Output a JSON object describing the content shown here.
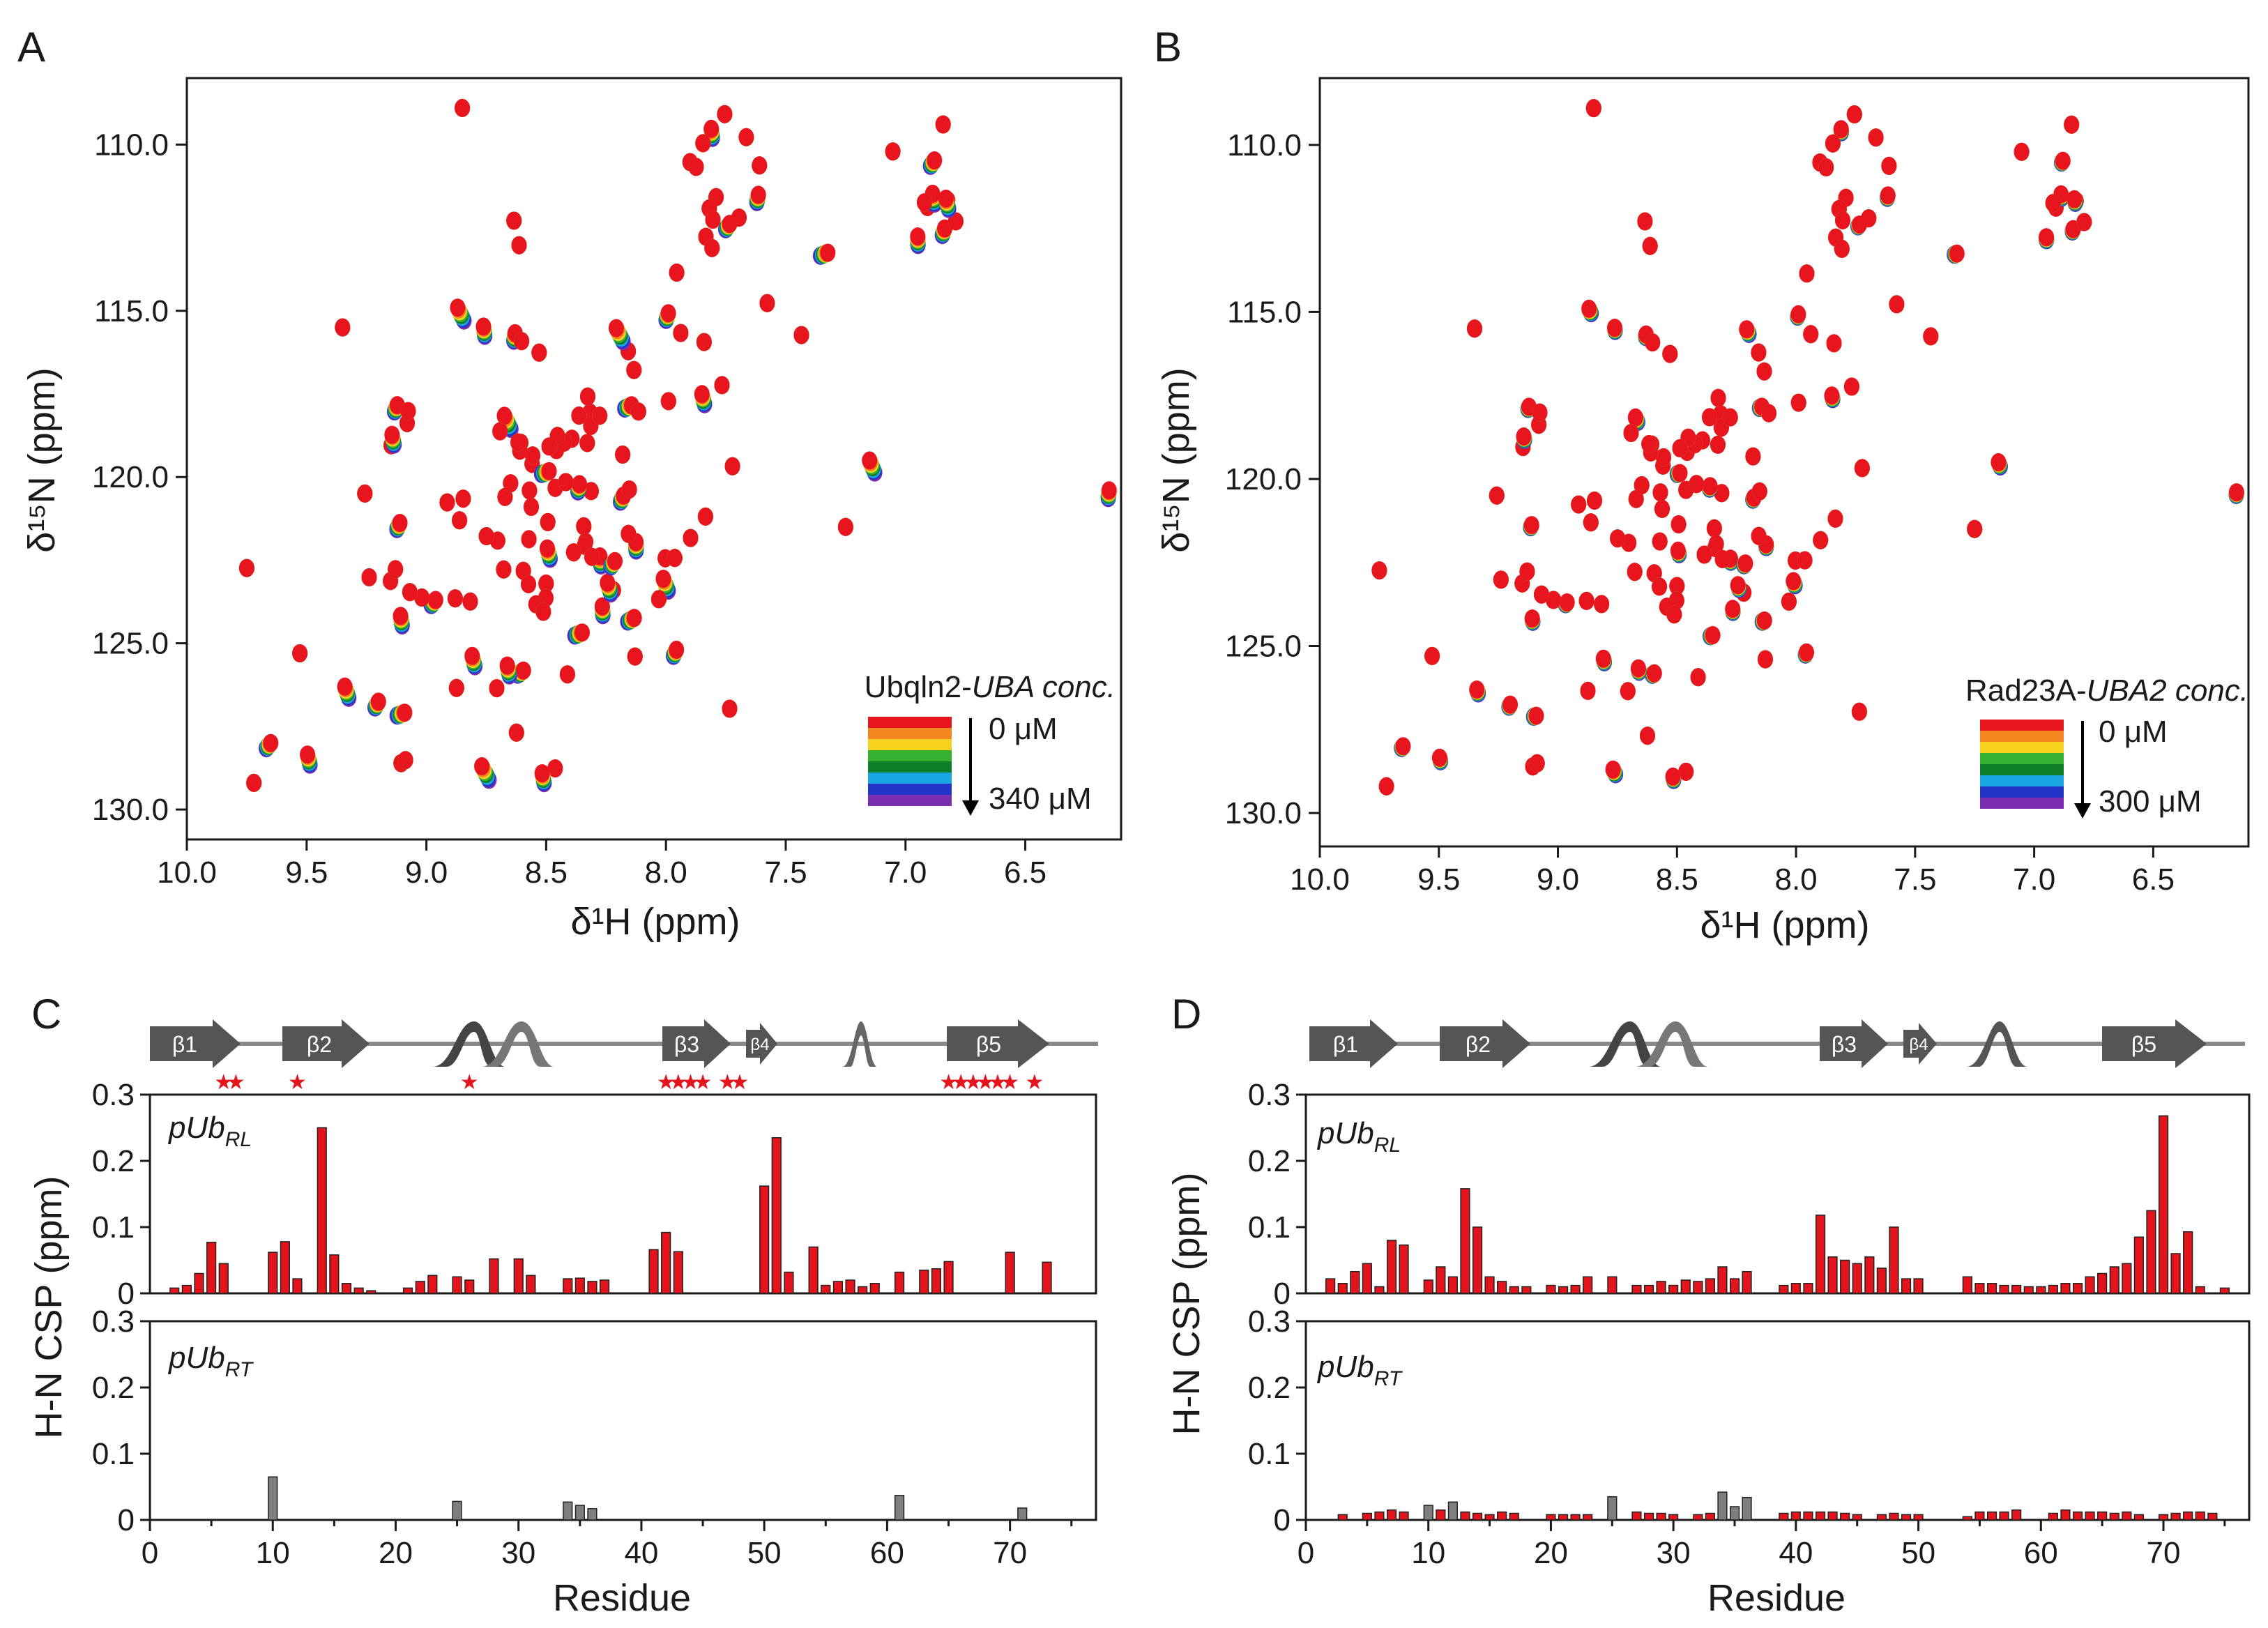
{
  "figure": {
    "panels": [
      "A",
      "B",
      "C",
      "D"
    ]
  },
  "hsqc_axes": {
    "xlabel": "δ¹H (ppm)",
    "ylabel": "δ¹⁵N (ppm)",
    "xticks": [
      "10.0",
      "9.5",
      "9.0",
      "8.5",
      "8.0",
      "7.5",
      "7.0",
      "6.5"
    ],
    "yticks": [
      "110.0",
      "115.0",
      "120.0",
      "125.0",
      "130.0"
    ]
  },
  "panel_A": {
    "legend_title_prefix": "Ubqln2-",
    "legend_title_italic": "UBA conc.",
    "legend_low": "0 μM",
    "legend_high": "340 μM"
  },
  "panel_B": {
    "legend_title_prefix": "Rad23A-",
    "legend_title_italic": "UBA2 conc.",
    "legend_low": "0 μM",
    "legend_high": "300 μM"
  },
  "titration_colors": [
    "#e8141e",
    "#f4861f",
    "#f6d21e",
    "#35b132",
    "#0e7d2a",
    "#1aa6e0",
    "#2335c8",
    "#7a2fb0"
  ],
  "csp_axes": {
    "ylabel": "H-N CSP (ppm)",
    "xlabel": "Residue",
    "xticks": [
      "0",
      "10",
      "20",
      "30",
      "40",
      "50",
      "60",
      "70"
    ],
    "yticks": [
      "0",
      "0.1",
      "0.2",
      "0.3"
    ],
    "label_RL_main": "pUb",
    "label_RL_sub": "RL",
    "label_RT_main": "pUb",
    "label_RT_sub": "RT"
  },
  "secondary_structure": {
    "strands": [
      "β1",
      "β2",
      "β3",
      "β4",
      "β5"
    ],
    "star": "★"
  },
  "chart_data": [
    {
      "type": "bar",
      "panel": "C",
      "title": "pUbRL",
      "xlabel": "Residue",
      "ylabel": "H-N CSP (ppm)",
      "xlim": [
        0,
        77
      ],
      "ylim": [
        0,
        0.3
      ],
      "x": [
        2,
        3,
        4,
        5,
        6,
        10,
        11,
        12,
        14,
        15,
        16,
        17,
        18,
        21,
        22,
        23,
        25,
        26,
        28,
        30,
        31,
        34,
        35,
        36,
        37,
        41,
        42,
        43,
        50,
        51,
        52,
        54,
        55,
        56,
        57,
        58,
        59,
        61,
        63,
        64,
        65,
        70,
        73
      ],
      "values": [
        0.008,
        0.012,
        0.03,
        0.077,
        0.045,
        0.062,
        0.078,
        0.022,
        0.25,
        0.058,
        0.015,
        0.008,
        0.004,
        0.008,
        0.018,
        0.027,
        0.025,
        0.02,
        0.052,
        0.052,
        0.027,
        0.022,
        0.023,
        0.018,
        0.02,
        0.066,
        0.092,
        0.063,
        0.162,
        0.235,
        0.032,
        0.07,
        0.012,
        0.018,
        0.02,
        0.01,
        0.015,
        0.032,
        0.035,
        0.037,
        0.048,
        0.062,
        0.047
      ],
      "color": "#e3141c",
      "starred_residues": [
        6,
        7,
        12,
        26,
        42,
        43,
        44,
        45,
        47,
        48,
        65,
        66,
        67,
        68,
        69,
        70,
        72
      ]
    },
    {
      "type": "bar",
      "panel": "C",
      "title": "pUbRT",
      "xlabel": "Residue",
      "ylabel": "H-N CSP (ppm)",
      "xlim": [
        0,
        77
      ],
      "ylim": [
        0,
        0.3
      ],
      "x": [
        10,
        25,
        34,
        35,
        36,
        61,
        71
      ],
      "values": [
        0.065,
        0.028,
        0.027,
        0.022,
        0.017,
        0.037,
        0.018
      ],
      "color": "#7f7f7f"
    },
    {
      "type": "bar",
      "panel": "D",
      "title": "pUbRL",
      "xlabel": "Residue",
      "ylabel": "H-N CSP (ppm)",
      "xlim": [
        0,
        77
      ],
      "ylim": [
        0,
        0.3
      ],
      "x": [
        2,
        3,
        4,
        5,
        6,
        7,
        8,
        10,
        11,
        12,
        13,
        14,
        15,
        16,
        17,
        18,
        20,
        21,
        22,
        23,
        25,
        27,
        28,
        29,
        30,
        31,
        32,
        33,
        34,
        35,
        36,
        39,
        40,
        41,
        42,
        43,
        44,
        45,
        46,
        47,
        48,
        49,
        50,
        54,
        55,
        56,
        57,
        58,
        59,
        60,
        61,
        62,
        63,
        64,
        65,
        66,
        67,
        68,
        69,
        70,
        71,
        72,
        73,
        75
      ],
      "values": [
        0.022,
        0.015,
        0.033,
        0.045,
        0.01,
        0.08,
        0.073,
        0.02,
        0.04,
        0.025,
        0.158,
        0.1,
        0.025,
        0.018,
        0.01,
        0.01,
        0.012,
        0.01,
        0.012,
        0.025,
        0.025,
        0.012,
        0.012,
        0.018,
        0.012,
        0.02,
        0.018,
        0.022,
        0.04,
        0.022,
        0.033,
        0.012,
        0.015,
        0.015,
        0.118,
        0.055,
        0.05,
        0.045,
        0.055,
        0.038,
        0.1,
        0.022,
        0.022,
        0.025,
        0.015,
        0.015,
        0.012,
        0.012,
        0.01,
        0.01,
        0.012,
        0.015,
        0.015,
        0.025,
        0.03,
        0.04,
        0.045,
        0.085,
        0.125,
        0.268,
        0.06,
        0.093,
        0.01,
        0.008
      ],
      "color": "#e3141c"
    },
    {
      "type": "bar",
      "panel": "D",
      "title": "pUbRT",
      "xlabel": "Residue",
      "ylabel": "H-N CSP (ppm)",
      "xlim": [
        0,
        77
      ],
      "ylim": [
        0,
        0.3
      ],
      "series": [
        {
          "name": "red",
          "color": "#e3141c",
          "x": [
            3,
            5,
            6,
            7,
            8,
            11,
            13,
            14,
            15,
            16,
            17,
            20,
            21,
            22,
            23,
            25,
            27,
            28,
            29,
            30,
            32,
            33,
            39,
            40,
            41,
            42,
            43,
            44,
            45,
            47,
            48,
            49,
            50,
            54,
            55,
            56,
            57,
            58,
            61,
            62,
            63,
            64,
            65,
            66,
            67,
            68,
            70,
            71,
            72,
            73,
            74
          ],
          "values": [
            0.008,
            0.01,
            0.012,
            0.015,
            0.012,
            0.015,
            0.012,
            0.01,
            0.008,
            0.012,
            0.01,
            0.008,
            0.008,
            0.008,
            0.008,
            0.008,
            0.012,
            0.01,
            0.01,
            0.008,
            0.008,
            0.01,
            0.01,
            0.012,
            0.012,
            0.012,
            0.012,
            0.01,
            0.008,
            0.008,
            0.01,
            0.008,
            0.008,
            0.005,
            0.012,
            0.012,
            0.012,
            0.015,
            0.01,
            0.015,
            0.012,
            0.012,
            0.012,
            0.01,
            0.012,
            0.008,
            0.008,
            0.01,
            0.012,
            0.012,
            0.01
          ]
        },
        {
          "name": "grey",
          "color": "#7f7f7f",
          "x": [
            10,
            12,
            25,
            34,
            35,
            36
          ],
          "values": [
            0.022,
            0.027,
            0.035,
            0.042,
            0.02,
            0.034
          ]
        }
      ]
    }
  ]
}
